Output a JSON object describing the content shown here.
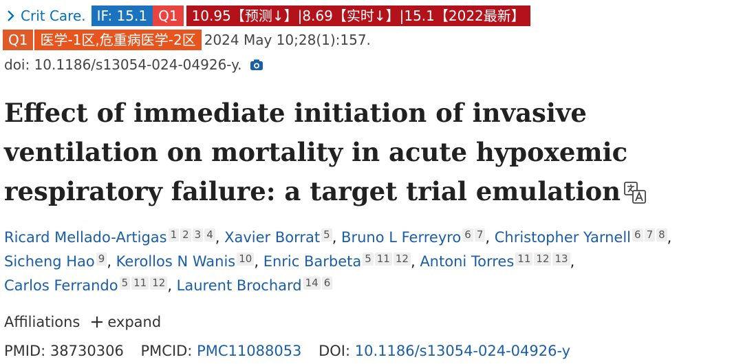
{
  "header": {
    "journal": "Crit Care.",
    "badges": {
      "impact_factor": "IF: 15.1",
      "quartile": "Q1",
      "if_detail": "10.95【预测↓】|8.69【实时↓】|15.1【2022最新】",
      "quartile2": "Q1",
      "category": "医学-1区,危重病医学-2区"
    },
    "pub_info": "2024 May 10;28(1):157.",
    "doi_line": "doi: 10.1186/s13054-024-04926-y."
  },
  "title": "Effect of immediate initiation of invasive ventilation on mortality in acute hypoxemic respiratory failure: a target trial emulation",
  "authors": [
    {
      "name": "Ricard Mellado-Artigas",
      "affs": [
        "1",
        "2",
        "3",
        "4"
      ]
    },
    {
      "name": "Xavier Borrat",
      "affs": [
        "5"
      ]
    },
    {
      "name": "Bruno L Ferreyro",
      "affs": [
        "6",
        "7"
      ]
    },
    {
      "name": "Christopher Yarnell",
      "affs": [
        "6",
        "7",
        "8"
      ]
    },
    {
      "name": "Sicheng Hao",
      "affs": [
        "9"
      ]
    },
    {
      "name": "Kerollos N Wanis",
      "affs": [
        "10"
      ]
    },
    {
      "name": "Enric Barbeta",
      "affs": [
        "5",
        "11",
        "12"
      ]
    },
    {
      "name": "Antoni Torres",
      "affs": [
        "11",
        "12",
        "13"
      ]
    },
    {
      "name": "Carlos Ferrando",
      "affs": [
        "5",
        "11",
        "12"
      ]
    },
    {
      "name": "Laurent Brochard",
      "affs": [
        "14",
        "6"
      ]
    }
  ],
  "affiliations": {
    "label": "Affiliations",
    "expand": "expand"
  },
  "identifiers": {
    "pmid_label": "PMID:",
    "pmid": "38730306",
    "pmcid_label": "PMCID:",
    "pmcid": "PMC11088053",
    "doi_label": "DOI:",
    "doi": "10.1186/s13054-024-04926-y"
  },
  "icons": {
    "chevron": "chevron-right-icon",
    "camera": "camera-icon",
    "translate": "translate-icon",
    "plus": "plus-icon"
  },
  "colors": {
    "link": "#1a5ea8",
    "if_badge": "#1b73c0",
    "q1_badge": "#e8433f",
    "detail_badge": "#b3121a",
    "category_badge": "#e8541e"
  }
}
